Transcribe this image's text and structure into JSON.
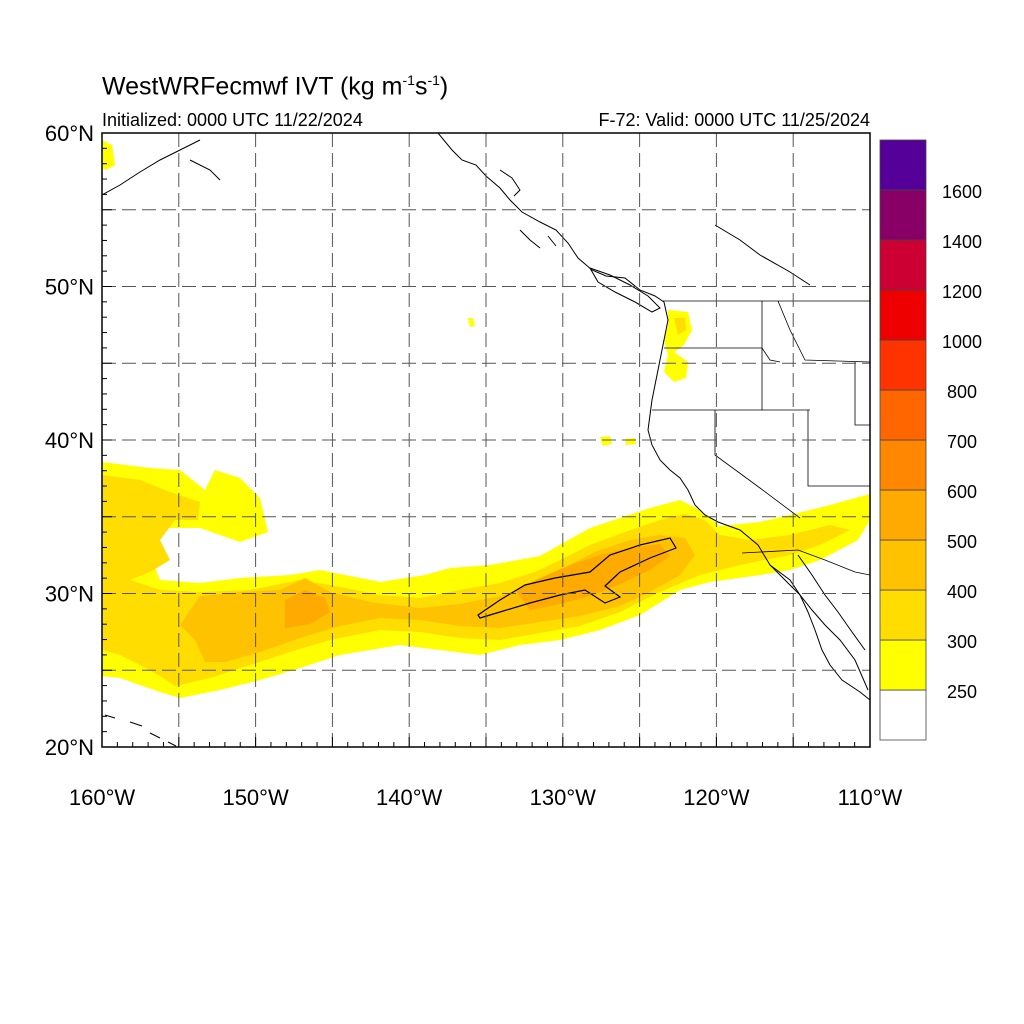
{
  "header": {
    "title_main": "WestWRFecmwf IVT (kg m",
    "title_exp1": "-1",
    "title_mid": "s",
    "title_exp2": "-1",
    "title_end": ")",
    "initialized": "Initialized: 0000 UTC 11/22/2024",
    "valid": "F-72: Valid: 0000 UTC 11/25/2024"
  },
  "map": {
    "lon_range": [
      -160,
      -110
    ],
    "lat_range": [
      20,
      60
    ],
    "lat_labels": [
      {
        "lat": 60,
        "text": "60°N"
      },
      {
        "lat": 50,
        "text": "50°N"
      },
      {
        "lat": 40,
        "text": "40°N"
      },
      {
        "lat": 30,
        "text": "30°N"
      },
      {
        "lat": 20,
        "text": "20°N"
      }
    ],
    "lon_labels": [
      {
        "lon": -160,
        "text": "160°W"
      },
      {
        "lon": -150,
        "text": "150°W"
      },
      {
        "lon": -140,
        "text": "140°W"
      },
      {
        "lon": -130,
        "text": "130°W"
      },
      {
        "lon": -120,
        "text": "120°W"
      },
      {
        "lon": -110,
        "text": "110°W"
      }
    ],
    "grid_lats": [
      25,
      30,
      35,
      40,
      45,
      50,
      55
    ],
    "grid_lons": [
      -155,
      -150,
      -145,
      -140,
      -135,
      -130,
      -125,
      -120,
      -115
    ]
  },
  "colorbar": {
    "labels": [
      "250",
      "300",
      "400",
      "500",
      "600",
      "700",
      "800",
      "1000",
      "1200",
      "1400",
      "1600"
    ],
    "colors": [
      "#ffffff",
      "#ffff00",
      "#ffdd00",
      "#ffc200",
      "#ffaa00",
      "#ff8800",
      "#ff6600",
      "#ff3300",
      "#ee0000",
      "#cc0033",
      "#880066",
      "#550099"
    ]
  }
}
